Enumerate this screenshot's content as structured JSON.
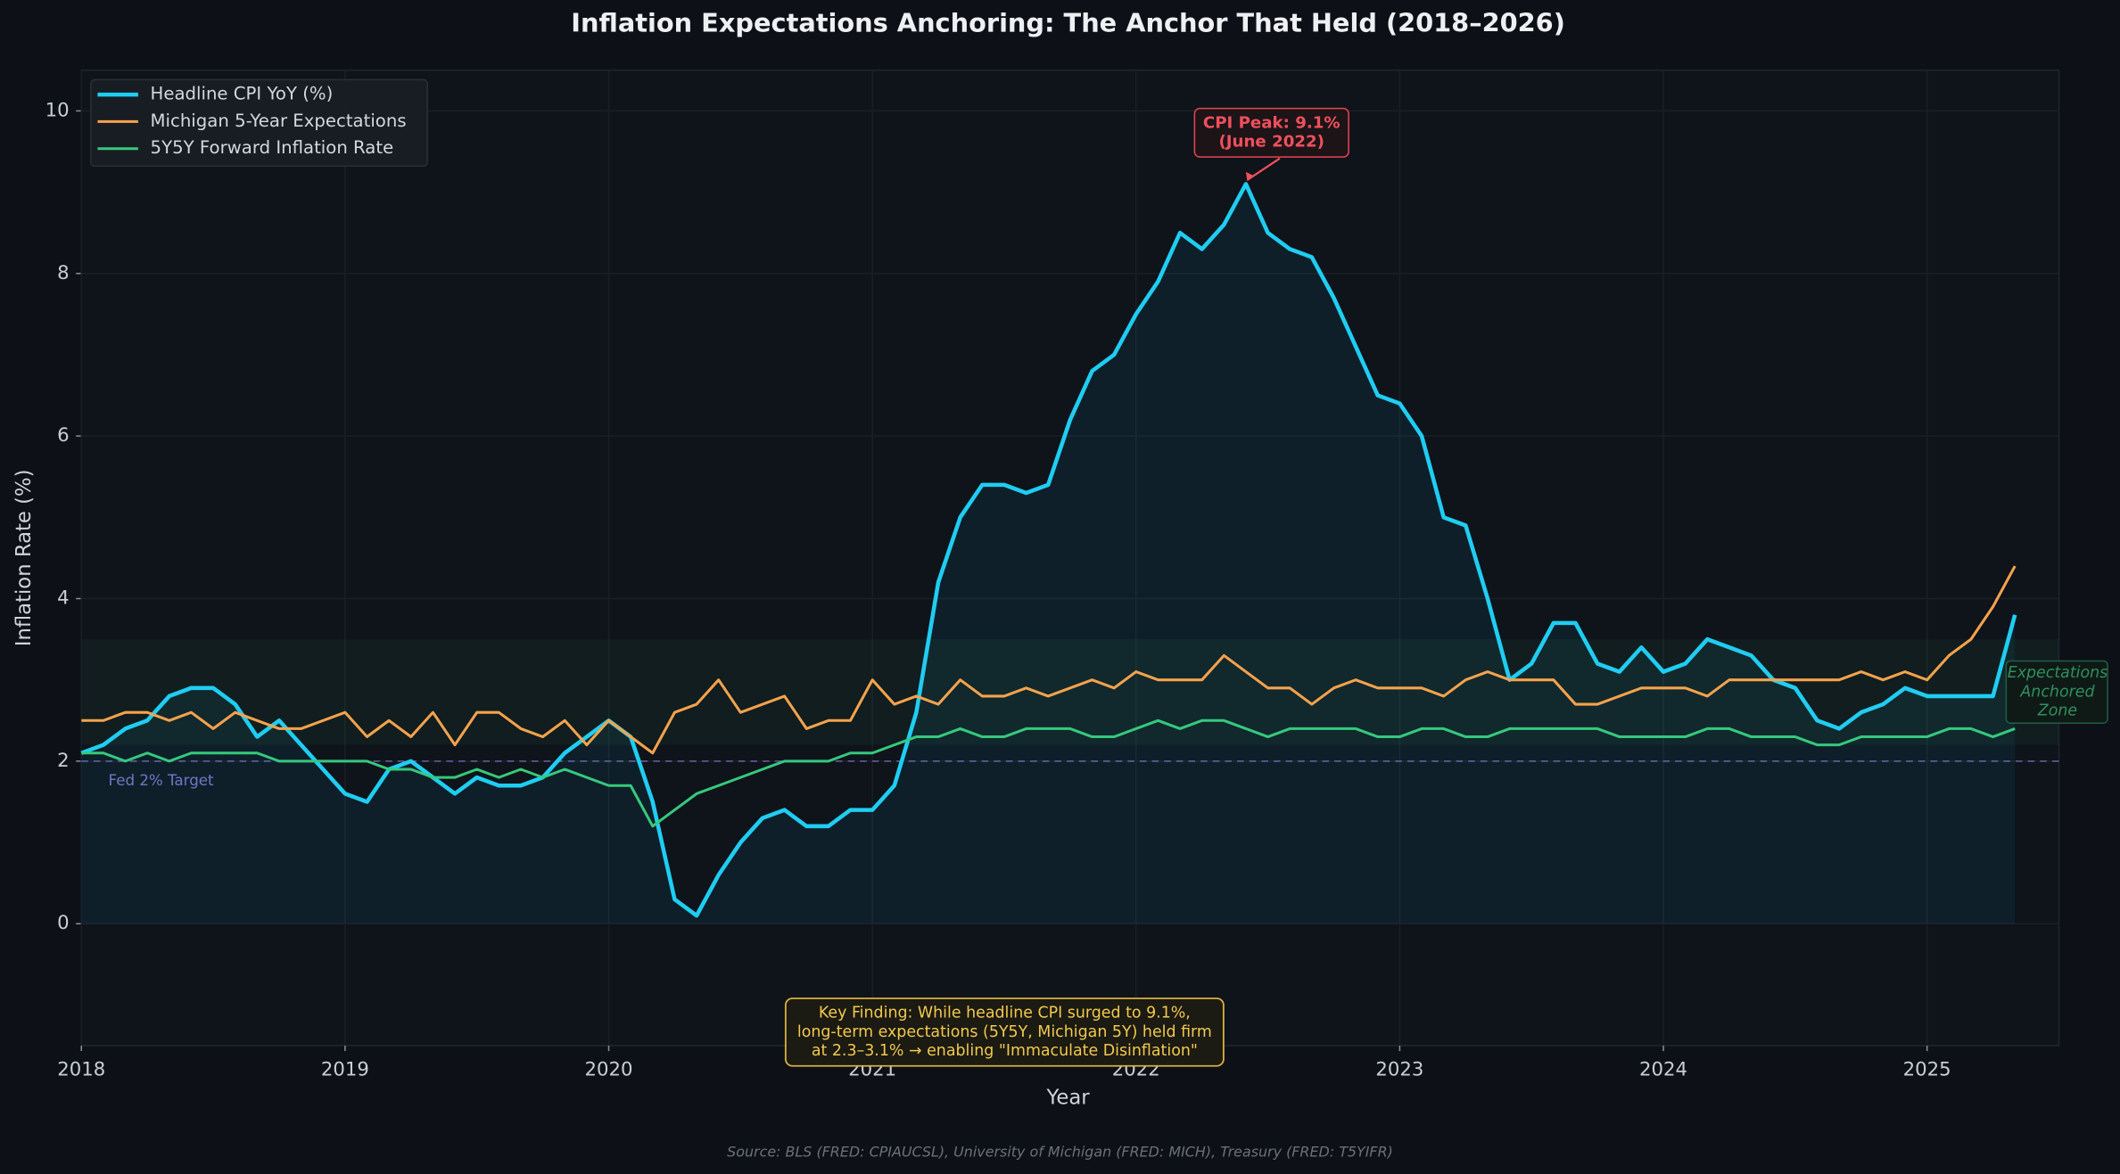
{
  "chart_data": {
    "type": "line",
    "title": "Inflation Expectations Anchoring: The Anchor That Held (2018–2026)",
    "xlabel": "Year",
    "ylabel": "Inflation Rate (%)",
    "x": [
      "2018-01",
      "2018-02",
      "2018-03",
      "2018-04",
      "2018-05",
      "2018-06",
      "2018-07",
      "2018-08",
      "2018-09",
      "2018-10",
      "2018-11",
      "2018-12",
      "2019-01",
      "2019-02",
      "2019-03",
      "2019-04",
      "2019-05",
      "2019-06",
      "2019-07",
      "2019-08",
      "2019-09",
      "2019-10",
      "2019-11",
      "2019-12",
      "2020-01",
      "2020-02",
      "2020-03",
      "2020-04",
      "2020-05",
      "2020-06",
      "2020-07",
      "2020-08",
      "2020-09",
      "2020-10",
      "2020-11",
      "2020-12",
      "2021-01",
      "2021-02",
      "2021-03",
      "2021-04",
      "2021-05",
      "2021-06",
      "2021-07",
      "2021-08",
      "2021-09",
      "2021-10",
      "2021-11",
      "2021-12",
      "2022-01",
      "2022-02",
      "2022-03",
      "2022-04",
      "2022-05",
      "2022-06",
      "2022-07",
      "2022-08",
      "2022-09",
      "2022-10",
      "2022-11",
      "2022-12",
      "2023-01",
      "2023-02",
      "2023-03",
      "2023-04",
      "2023-05",
      "2023-06",
      "2023-07",
      "2023-08",
      "2023-09",
      "2023-10",
      "2023-11",
      "2023-12",
      "2024-01",
      "2024-02",
      "2024-03",
      "2024-04",
      "2024-05",
      "2024-06",
      "2024-07",
      "2024-08",
      "2024-09",
      "2024-10",
      "2024-11",
      "2024-12",
      "2025-01",
      "2025-02",
      "2025-03",
      "2025-04",
      "2025-05"
    ],
    "series": [
      {
        "name": "Headline CPI YoY (%)",
        "color": "#1fcdf2",
        "width": 3,
        "fill": true,
        "values": [
          2.1,
          2.2,
          2.4,
          2.5,
          2.8,
          2.9,
          2.9,
          2.7,
          2.3,
          2.5,
          2.2,
          1.9,
          1.6,
          1.5,
          1.9,
          2.0,
          1.8,
          1.6,
          1.8,
          1.7,
          1.7,
          1.8,
          2.1,
          2.3,
          2.5,
          2.3,
          1.5,
          0.3,
          0.1,
          0.6,
          1.0,
          1.3,
          1.4,
          1.2,
          1.2,
          1.4,
          1.4,
          1.7,
          2.6,
          4.2,
          5.0,
          5.4,
          5.4,
          5.3,
          5.4,
          6.2,
          6.8,
          7.0,
          7.5,
          7.9,
          8.5,
          8.3,
          8.6,
          9.1,
          8.5,
          8.3,
          8.2,
          7.7,
          7.1,
          6.5,
          6.4,
          6.0,
          5.0,
          4.9,
          4.0,
          3.0,
          3.2,
          3.7,
          3.7,
          3.2,
          3.1,
          3.4,
          3.1,
          3.2,
          3.5,
          3.4,
          3.3,
          3.0,
          2.9,
          2.5,
          2.4,
          2.6,
          2.7,
          2.9,
          2.8,
          2.8,
          2.8,
          2.8,
          3.8
        ]
      },
      {
        "name": "Michigan 5-Year Expectations",
        "color": "#f5a34c",
        "width": 2,
        "values": [
          2.5,
          2.5,
          2.6,
          2.6,
          2.5,
          2.6,
          2.4,
          2.6,
          2.5,
          2.4,
          2.4,
          2.5,
          2.6,
          2.3,
          2.5,
          2.3,
          2.6,
          2.2,
          2.6,
          2.6,
          2.4,
          2.3,
          2.5,
          2.2,
          2.5,
          2.3,
          2.1,
          2.6,
          2.7,
          3.0,
          2.6,
          2.7,
          2.8,
          2.4,
          2.5,
          2.5,
          3.0,
          2.7,
          2.8,
          2.7,
          3.0,
          2.8,
          2.8,
          2.9,
          2.8,
          2.9,
          3.0,
          2.9,
          3.1,
          3.0,
          3.0,
          3.0,
          3.3,
          3.1,
          2.9,
          2.9,
          2.7,
          2.9,
          3.0,
          2.9,
          2.9,
          2.9,
          2.8,
          3.0,
          3.1,
          3.0,
          3.0,
          3.0,
          2.7,
          2.7,
          2.8,
          2.9,
          2.9,
          2.9,
          2.8,
          3.0,
          3.0,
          3.0,
          3.0,
          3.0,
          3.0,
          3.1,
          3.0,
          3.1,
          3.0,
          3.3,
          3.5,
          3.9,
          4.4
        ]
      },
      {
        "name": "5Y5Y Forward Inflation Rate",
        "color": "#35c97d",
        "width": 2,
        "values": [
          2.1,
          2.1,
          2.0,
          2.1,
          2.0,
          2.1,
          2.1,
          2.1,
          2.1,
          2.0,
          2.0,
          2.0,
          2.0,
          2.0,
          1.9,
          1.9,
          1.8,
          1.8,
          1.9,
          1.8,
          1.9,
          1.8,
          1.9,
          1.8,
          1.7,
          1.7,
          1.2,
          1.4,
          1.6,
          1.7,
          1.8,
          1.9,
          2.0,
          2.0,
          2.0,
          2.1,
          2.1,
          2.2,
          2.3,
          2.3,
          2.4,
          2.3,
          2.3,
          2.4,
          2.4,
          2.4,
          2.3,
          2.3,
          2.4,
          2.5,
          2.4,
          2.5,
          2.5,
          2.4,
          2.3,
          2.4,
          2.4,
          2.4,
          2.4,
          2.3,
          2.3,
          2.4,
          2.4,
          2.3,
          2.3,
          2.4,
          2.4,
          2.4,
          2.4,
          2.4,
          2.3,
          2.3,
          2.3,
          2.3,
          2.4,
          2.4,
          2.3,
          2.3,
          2.3,
          2.2,
          2.2,
          2.3,
          2.3,
          2.3,
          2.3,
          2.4,
          2.4,
          2.3,
          2.4
        ]
      }
    ],
    "xlim": [
      2018,
      2025.5
    ],
    "xticks": [
      2018,
      2019,
      2020,
      2021,
      2022,
      2023,
      2024,
      2025
    ],
    "ylim": [
      -1.5,
      10.5
    ],
    "yticks": [
      0,
      2,
      4,
      6,
      8,
      10
    ],
    "grid": true,
    "legend": "upper left",
    "target": 2,
    "target_label": "Fed 2% Target",
    "anchored_zone": [
      2.2,
      3.5
    ],
    "anchored_zone_label": [
      "Expectations",
      "Anchored",
      "Zone"
    ],
    "peak_annotation": [
      "CPI Peak: 9.1%",
      "(June 2022)"
    ],
    "key_finding": [
      "Key Finding: While headline CPI surged to 9.1%,",
      "long-term expectations (5Y5Y, Michigan 5Y) held firm",
      "at 2.3–3.1% → enabling \"Immaculate Disinflation\""
    ],
    "source": "Source: BLS (FRED: CPIAUCSL), University of Michigan (FRED: MICH), Treasury (FRED: T5YIFR)"
  }
}
